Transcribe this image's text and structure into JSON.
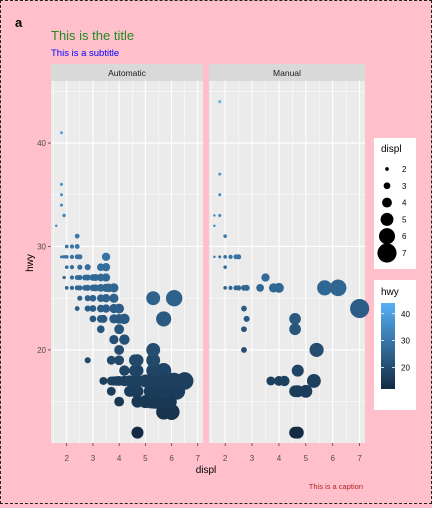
{
  "tag": "a",
  "title": "This is the title",
  "subtitle": "This is a subtitle",
  "caption": "This is a caption",
  "colors": {
    "background": "#ffc0cb",
    "panel": "#ebebeb",
    "strip": "#d9d9d9",
    "title": "#228b22",
    "subtitle": "#0000ff",
    "caption": "#b22222",
    "hwy_low": "#132b43",
    "hwy_high": "#56b1f7"
  },
  "chart_data": {
    "type": "scatter",
    "xlabel": "displ",
    "ylabel": "hwy",
    "xlim": [
      1.4,
      7.2
    ],
    "ylim": [
      11,
      46
    ],
    "xticks": [
      2,
      3,
      4,
      5,
      6,
      7
    ],
    "yticks": [
      20,
      30,
      40
    ],
    "grid": true,
    "facets": [
      "Automatic",
      "Manual"
    ],
    "legend_placement": "right",
    "size_legend": {
      "title": "displ",
      "breaks": [
        2,
        3,
        4,
        5,
        6,
        7
      ]
    },
    "color_legend": {
      "title": "hwy",
      "breaks": [
        20,
        30,
        40
      ],
      "range": [
        12,
        44
      ]
    },
    "points": {
      "Automatic": [
        [
          1.6,
          32
        ],
        [
          1.8,
          29
        ],
        [
          1.8,
          34
        ],
        [
          1.8,
          35
        ],
        [
          1.8,
          36
        ],
        [
          1.8,
          41
        ],
        [
          1.9,
          27
        ],
        [
          1.9,
          29
        ],
        [
          1.9,
          33
        ],
        [
          2.0,
          26
        ],
        [
          2.0,
          28
        ],
        [
          2.0,
          29
        ],
        [
          2.0,
          30
        ],
        [
          2.2,
          26
        ],
        [
          2.2,
          27
        ],
        [
          2.2,
          28
        ],
        [
          2.2,
          29
        ],
        [
          2.2,
          30
        ],
        [
          2.4,
          24
        ],
        [
          2.4,
          26
        ],
        [
          2.4,
          27
        ],
        [
          2.4,
          29
        ],
        [
          2.4,
          30
        ],
        [
          2.4,
          31
        ],
        [
          2.5,
          25
        ],
        [
          2.5,
          26
        ],
        [
          2.5,
          27
        ],
        [
          2.5,
          28
        ],
        [
          2.5,
          29
        ],
        [
          2.7,
          26
        ],
        [
          2.7,
          27
        ],
        [
          2.8,
          19
        ],
        [
          2.8,
          24
        ],
        [
          2.8,
          25
        ],
        [
          2.8,
          26
        ],
        [
          2.8,
          27
        ],
        [
          2.8,
          28
        ],
        [
          3.0,
          23
        ],
        [
          3.0,
          24
        ],
        [
          3.0,
          25
        ],
        [
          3.0,
          26
        ],
        [
          3.0,
          27
        ],
        [
          3.1,
          26
        ],
        [
          3.1,
          27
        ],
        [
          3.3,
          22
        ],
        [
          3.3,
          23
        ],
        [
          3.3,
          24
        ],
        [
          3.3,
          25
        ],
        [
          3.3,
          26
        ],
        [
          3.3,
          27
        ],
        [
          3.3,
          28
        ],
        [
          3.4,
          17
        ],
        [
          3.4,
          23
        ],
        [
          3.5,
          24
        ],
        [
          3.5,
          25
        ],
        [
          3.5,
          26
        ],
        [
          3.5,
          27
        ],
        [
          3.5,
          28
        ],
        [
          3.5,
          29
        ],
        [
          3.6,
          26
        ],
        [
          3.7,
          16
        ],
        [
          3.7,
          17
        ],
        [
          3.7,
          19
        ],
        [
          3.8,
          17
        ],
        [
          3.8,
          21
        ],
        [
          3.8,
          23
        ],
        [
          3.8,
          24
        ],
        [
          3.8,
          25
        ],
        [
          3.8,
          26
        ],
        [
          3.9,
          17
        ],
        [
          4.0,
          15
        ],
        [
          4.0,
          17
        ],
        [
          4.0,
          19
        ],
        [
          4.0,
          20
        ],
        [
          4.0,
          22
        ],
        [
          4.0,
          23
        ],
        [
          4.0,
          24
        ],
        [
          4.2,
          17
        ],
        [
          4.2,
          18
        ],
        [
          4.2,
          21
        ],
        [
          4.2,
          23
        ],
        [
          4.4,
          16
        ],
        [
          4.4,
          17
        ],
        [
          4.6,
          16
        ],
        [
          4.6,
          17
        ],
        [
          4.6,
          18
        ],
        [
          4.6,
          19
        ],
        [
          4.7,
          12
        ],
        [
          4.7,
          15
        ],
        [
          4.7,
          16
        ],
        [
          4.7,
          17
        ],
        [
          4.7,
          18
        ],
        [
          4.7,
          19
        ],
        [
          5.0,
          15
        ],
        [
          5.0,
          17
        ],
        [
          5.2,
          15
        ],
        [
          5.2,
          16
        ],
        [
          5.2,
          17
        ],
        [
          5.3,
          15
        ],
        [
          5.3,
          16
        ],
        [
          5.3,
          17
        ],
        [
          5.3,
          18
        ],
        [
          5.3,
          19
        ],
        [
          5.3,
          20
        ],
        [
          5.3,
          25
        ],
        [
          5.4,
          15
        ],
        [
          5.4,
          16
        ],
        [
          5.4,
          17
        ],
        [
          5.4,
          18
        ],
        [
          5.6,
          16
        ],
        [
          5.6,
          17
        ],
        [
          5.7,
          14
        ],
        [
          5.7,
          15
        ],
        [
          5.7,
          16
        ],
        [
          5.7,
          17
        ],
        [
          5.7,
          18
        ],
        [
          5.7,
          23
        ],
        [
          5.9,
          15
        ],
        [
          5.9,
          17
        ],
        [
          6.0,
          14
        ],
        [
          6.0,
          17
        ],
        [
          6.1,
          17
        ],
        [
          6.1,
          25
        ],
        [
          6.2,
          16
        ],
        [
          6.5,
          17
        ]
      ],
      "Manual": [
        [
          1.8,
          29
        ],
        [
          1.8,
          33
        ],
        [
          1.8,
          35
        ],
        [
          1.8,
          37
        ],
        [
          1.8,
          44
        ],
        [
          1.6,
          29
        ],
        [
          1.6,
          32
        ],
        [
          1.6,
          33
        ],
        [
          2.0,
          26
        ],
        [
          2.0,
          28
        ],
        [
          2.0,
          29
        ],
        [
          2.0,
          31
        ],
        [
          2.2,
          26
        ],
        [
          2.2,
          29
        ],
        [
          2.4,
          26
        ],
        [
          2.4,
          29
        ],
        [
          2.5,
          26
        ],
        [
          2.5,
          29
        ],
        [
          2.7,
          20
        ],
        [
          2.7,
          22
        ],
        [
          2.7,
          24
        ],
        [
          2.7,
          26
        ],
        [
          2.8,
          23
        ],
        [
          2.8,
          26
        ],
        [
          3.3,
          26
        ],
        [
          3.5,
          27
        ],
        [
          3.7,
          17
        ],
        [
          3.8,
          26
        ],
        [
          4.0,
          17
        ],
        [
          4.0,
          26
        ],
        [
          4.2,
          17
        ],
        [
          4.6,
          12
        ],
        [
          4.6,
          16
        ],
        [
          4.6,
          22
        ],
        [
          4.6,
          23
        ],
        [
          4.7,
          12
        ],
        [
          4.7,
          16
        ],
        [
          4.7,
          18
        ],
        [
          5.0,
          16
        ],
        [
          5.3,
          17
        ],
        [
          5.4,
          20
        ],
        [
          5.7,
          26
        ],
        [
          6.2,
          26
        ],
        [
          7.0,
          24
        ]
      ]
    }
  }
}
